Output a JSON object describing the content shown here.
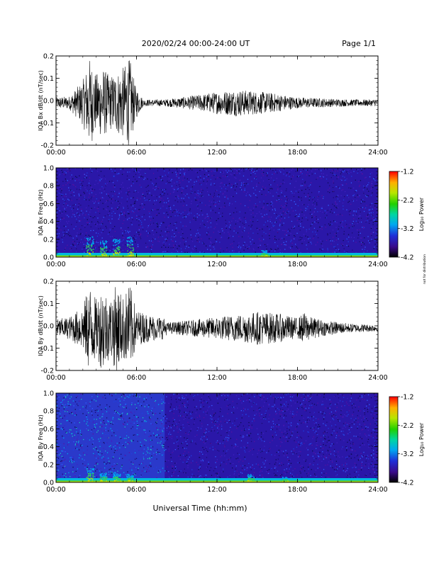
{
  "header": {
    "title": "2020/02/24  00:00-24:00 UT",
    "page": "Page 1/1"
  },
  "footer": {
    "xlabel": "Universal Time (hh:mm)"
  },
  "credit": "not for distribution",
  "colors": {
    "spectrogram_bg": "#2a17a8",
    "trace": "#000000"
  },
  "chart_data": [
    {
      "type": "line",
      "ylabel": "IQA Bx dB/dt (nT/sec)",
      "ylim": [
        -0.2,
        0.2
      ],
      "yticks": [
        "0.2",
        "0.1",
        "0.0",
        "-0.1",
        "-0.2"
      ],
      "xticks": [
        "00:00",
        "06:00",
        "12:00",
        "18:00",
        "24:00"
      ],
      "xlim_hours": [
        0,
        24
      ],
      "envelope": {
        "hours": [
          0,
          1,
          2,
          2.5,
          3,
          3.5,
          4,
          4.5,
          5,
          5.5,
          5.9,
          6.5,
          8,
          10,
          12,
          13.5,
          14.5,
          16,
          17,
          18,
          20,
          22,
          24
        ],
        "amplitude": [
          0.025,
          0.03,
          0.1,
          0.2,
          0.13,
          0.16,
          0.12,
          0.14,
          0.16,
          0.2,
          0.08,
          0.015,
          0.015,
          0.03,
          0.05,
          0.06,
          0.055,
          0.045,
          0.035,
          0.025,
          0.02,
          0.015,
          0.015
        ]
      }
    },
    {
      "type": "heatmap",
      "ylabel": "IQA Bx Freq (Hz)",
      "ylim": [
        0.0,
        1.0
      ],
      "yticks": [
        "1.0",
        "0.8",
        "0.6",
        "0.4",
        "0.2",
        "0.0"
      ],
      "xticks": [
        "00:00",
        "06:00",
        "12:00",
        "18:00",
        "24:00"
      ],
      "colorbar": {
        "label": "Log₁₀ Power",
        "range": [
          -4.2,
          -1.2
        ],
        "ticks": [
          "-1.2",
          "-2.2",
          "-3.2",
          "-4.2"
        ]
      }
    },
    {
      "type": "line",
      "ylabel": "IQA By dB/dt (nT/sec)",
      "ylim": [
        -0.2,
        0.2
      ],
      "yticks": [
        "0.2",
        "0.1",
        "0.0",
        "-0.1",
        "-0.2"
      ],
      "xticks": [
        "00:00",
        "06:00",
        "12:00",
        "18:00",
        "24:00"
      ],
      "xlim_hours": [
        0,
        24
      ],
      "envelope": {
        "hours": [
          0,
          1,
          2,
          2.5,
          3,
          3.5,
          4,
          4.5,
          5,
          5.5,
          6,
          7,
          8,
          8.3,
          10,
          12,
          14,
          15,
          16,
          17,
          18,
          18.5,
          19,
          20,
          22,
          24
        ],
        "amplitude": [
          0.04,
          0.05,
          0.1,
          0.2,
          0.13,
          0.2,
          0.13,
          0.2,
          0.14,
          0.2,
          0.08,
          0.06,
          0.05,
          0.025,
          0.035,
          0.05,
          0.065,
          0.075,
          0.07,
          0.06,
          0.045,
          0.07,
          0.05,
          0.035,
          0.02,
          0.015
        ]
      }
    },
    {
      "type": "heatmap",
      "ylabel": "IQA By Freq (Hz)",
      "ylim": [
        0.0,
        1.0
      ],
      "yticks": [
        "1.0",
        "0.8",
        "0.6",
        "0.4",
        "0.2",
        "0.0"
      ],
      "xticks": [
        "00:00",
        "06:00",
        "12:00",
        "18:00",
        "24:00"
      ],
      "colorbar": {
        "label": "Log₁₀ Power",
        "range": [
          -4.2,
          -1.2
        ],
        "ticks": [
          "-1.2",
          "-2.2",
          "-3.2",
          "-4.2"
        ]
      }
    }
  ]
}
